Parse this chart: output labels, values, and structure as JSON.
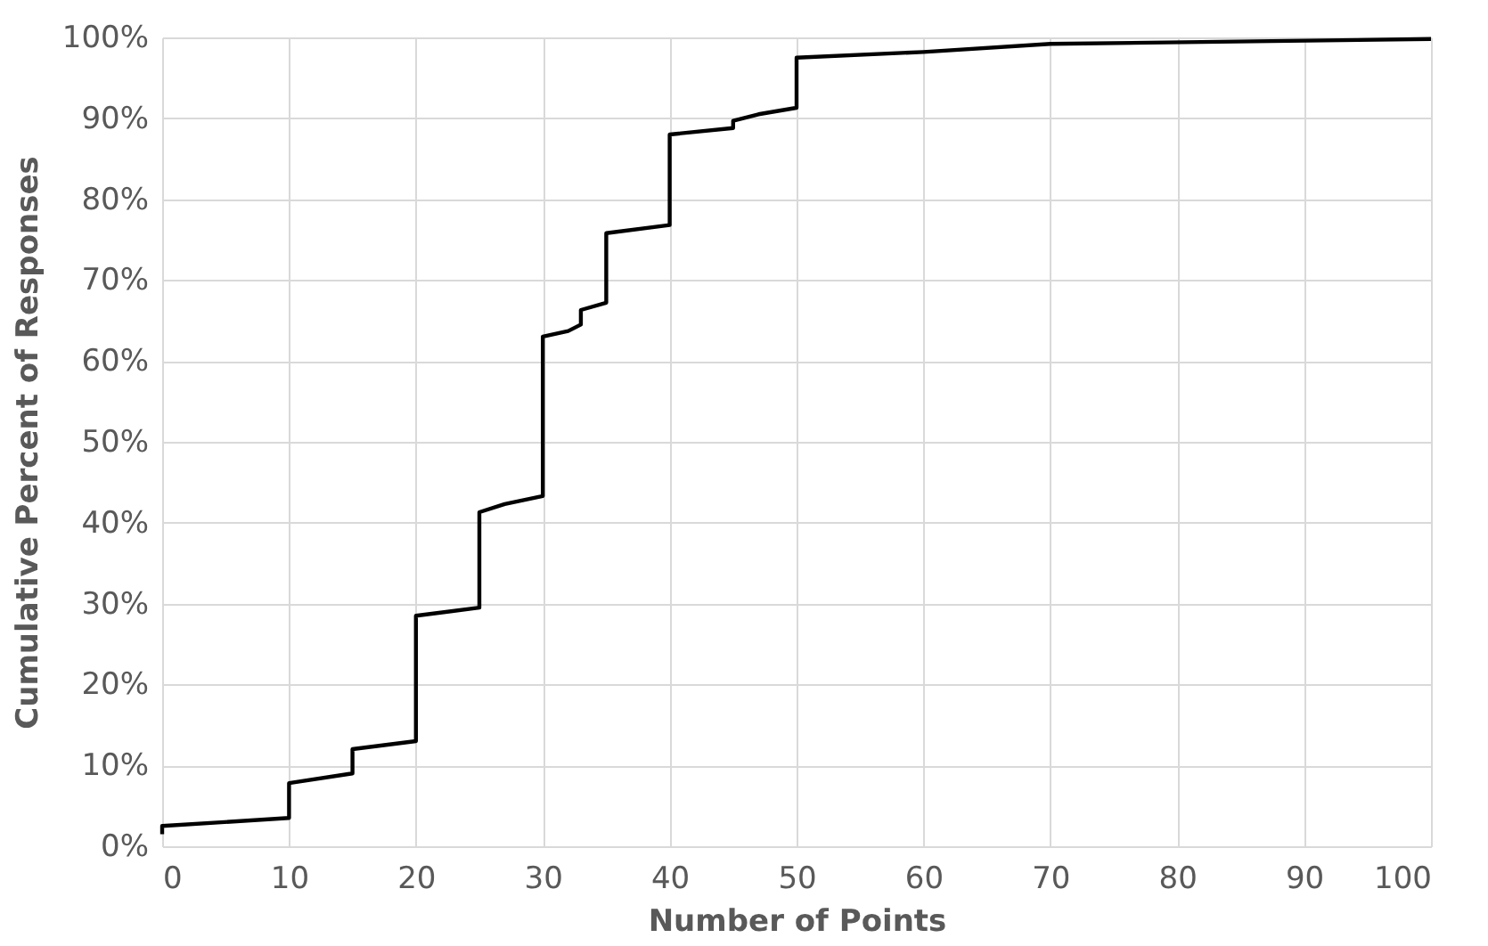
{
  "chart_data": {
    "type": "line",
    "xlabel": "Number of Points",
    "ylabel": "Cumulative Percent of Responses",
    "x": [
      0,
      0,
      10,
      10,
      15,
      15,
      20,
      20,
      25,
      25,
      27,
      30,
      30,
      32,
      33,
      33,
      35,
      35,
      40,
      40,
      45,
      45,
      47,
      50,
      50,
      60,
      70,
      100
    ],
    "series": [
      {
        "color": "#000000",
        "values": [
          1.5,
          2.5,
          3.5,
          7.8,
          9,
          12,
          13,
          28.5,
          29.5,
          41.3,
          42.3,
          43.3,
          63,
          63.7,
          64.5,
          66.3,
          67.2,
          75.8,
          76.8,
          88,
          88.8,
          89.7,
          90.5,
          91.3,
          97.5,
          98.2,
          99.2,
          99.8
        ]
      }
    ],
    "xlim": [
      0,
      100
    ],
    "xticks": [
      0,
      10,
      20,
      30,
      40,
      50,
      60,
      70,
      80,
      90,
      100
    ],
    "ylim": [
      0,
      100
    ],
    "yticks": [
      {
        "value": 0,
        "label": "0%"
      },
      {
        "value": 10,
        "label": "10%"
      },
      {
        "value": 20,
        "label": "20%"
      },
      {
        "value": 30,
        "label": "30%"
      },
      {
        "value": 40,
        "label": "40%"
      },
      {
        "value": 50,
        "label": "50%"
      },
      {
        "value": 60,
        "label": "60%"
      },
      {
        "value": 70,
        "label": "70%"
      },
      {
        "value": 80,
        "label": "80%"
      },
      {
        "value": 90,
        "label": "90%"
      },
      {
        "value": 100,
        "label": "100%"
      }
    ],
    "grid": true,
    "marker": "none",
    "line_style": "solid"
  }
}
